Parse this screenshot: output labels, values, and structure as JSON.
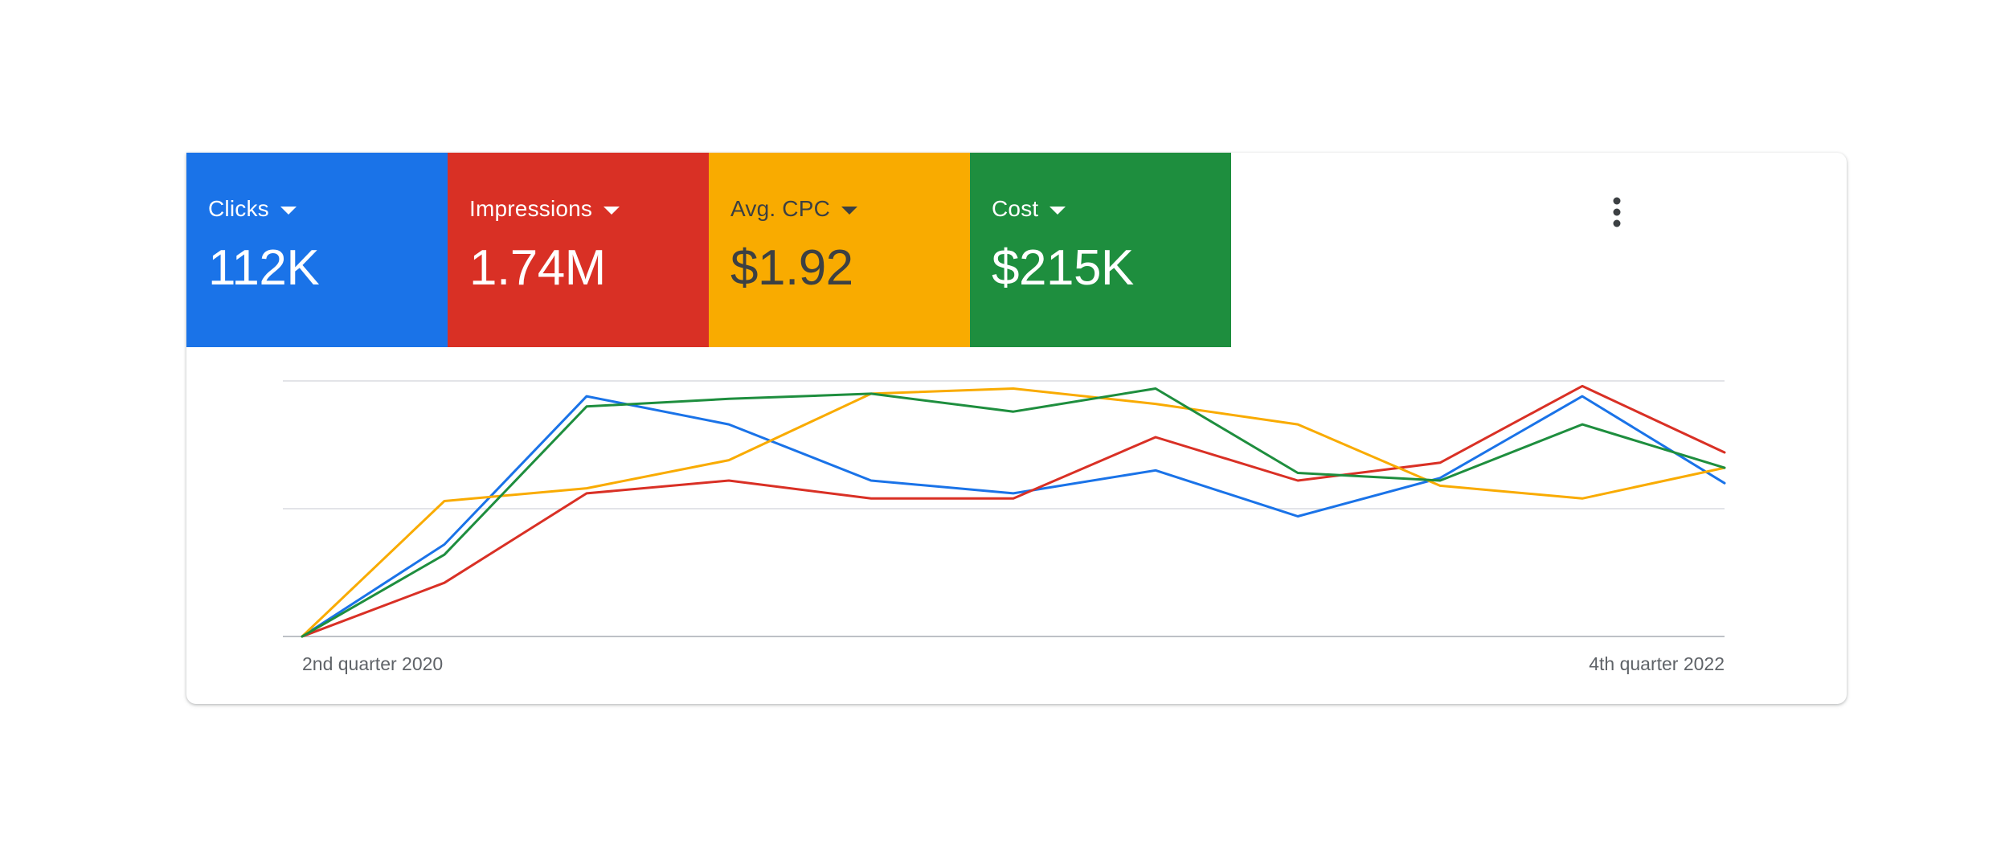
{
  "metrics": [
    {
      "label": "Clicks",
      "value": "112K",
      "color": "#1a73e8"
    },
    {
      "label": "Impressions",
      "value": "1.74M",
      "color": "#d93025"
    },
    {
      "label": "Avg. CPC",
      "value": "$1.92",
      "color": "#f9ab00"
    },
    {
      "label": "Cost",
      "value": "$215K",
      "color": "#1e8e3e"
    }
  ],
  "menu_icon": "more-vert-icon",
  "chart_data": {
    "type": "line",
    "x": [
      "2nd quarter 2020",
      "",
      "",
      "",
      "",
      "",
      "",
      "",
      "",
      "",
      "4th quarter 2022"
    ],
    "x_tick_labels": [
      "2nd quarter 2020",
      "4th quarter 2022"
    ],
    "ylim": [
      0,
      100
    ],
    "grid": true,
    "series": [
      {
        "name": "Clicks",
        "color": "#1a73e8",
        "values": [
          0,
          36,
          94,
          83,
          61,
          56,
          65,
          47,
          62,
          94,
          60
        ]
      },
      {
        "name": "Impressions",
        "color": "#d93025",
        "values": [
          0,
          21,
          56,
          61,
          54,
          54,
          78,
          61,
          68,
          98,
          72
        ]
      },
      {
        "name": "Avg. CPC",
        "color": "#f9ab00",
        "values": [
          0,
          53,
          58,
          69,
          95,
          97,
          91,
          83,
          59,
          54,
          66
        ]
      },
      {
        "name": "Cost",
        "color": "#1e8e3e",
        "values": [
          0,
          32,
          90,
          93,
          95,
          88,
          97,
          64,
          61,
          83,
          66
        ]
      }
    ]
  }
}
